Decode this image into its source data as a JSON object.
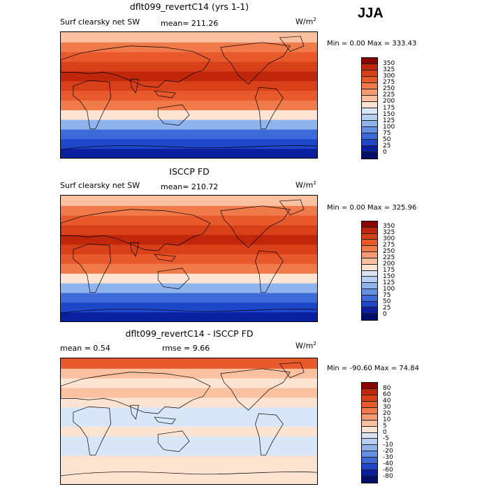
{
  "season": "JJA",
  "panels": [
    {
      "title": "dflt099_revertC14 (yrs 1-1)",
      "field": "Surf clearsky net SW",
      "stat": "mean= 211.26",
      "units": "W/m",
      "units_sup": "2",
      "minmax": "Min =    0.00 Max = 333.43",
      "cbar_labels": [
        "350",
        "325",
        "300",
        "275",
        "250",
        "225",
        "200",
        "175",
        "150",
        "125",
        "100",
        "75",
        "50",
        "25",
        "0"
      ],
      "cbar_colors": [
        "#8b0000",
        "#c0260a",
        "#d8401a",
        "#e85a2c",
        "#f07a4a",
        "#f59a72",
        "#fac0a0",
        "#fde3d2",
        "#d8e6f8",
        "#b6cff2",
        "#8fb3ec",
        "#6690e4",
        "#3d6ad8",
        "#1d46c8",
        "#0a1fa0",
        "#02106a"
      ],
      "band_colors": [
        "#0a1fa0",
        "#1d46c8",
        "#3d6ad8",
        "#8fb3ec",
        "#fde3d2",
        "#f07a4a",
        "#e85a2c",
        "#d8401a",
        "#c0260a",
        "#d8401a",
        "#e85a2c",
        "#f07a4a",
        "#fac0a0"
      ]
    },
    {
      "title": "ISCCP FD",
      "field": "Surf clearsky net SW",
      "stat": "mean= 210.72",
      "units": "W/m",
      "units_sup": "2",
      "minmax": "Min =    0.00 Max = 325.96",
      "cbar_labels": [
        "350",
        "325",
        "300",
        "275",
        "250",
        "225",
        "200",
        "175",
        "150",
        "125",
        "100",
        "75",
        "50",
        "25",
        "0"
      ],
      "cbar_colors": [
        "#8b0000",
        "#c0260a",
        "#d8401a",
        "#e85a2c",
        "#f07a4a",
        "#f59a72",
        "#fac0a0",
        "#fde3d2",
        "#d8e6f8",
        "#b6cff2",
        "#8fb3ec",
        "#6690e4",
        "#3d6ad8",
        "#1d46c8",
        "#0a1fa0",
        "#02106a"
      ],
      "band_colors": [
        "#0a1fa0",
        "#1d46c8",
        "#3d6ad8",
        "#8fb3ec",
        "#fde3d2",
        "#f07a4a",
        "#e85a2c",
        "#d8401a",
        "#c0260a",
        "#d8401a",
        "#e85a2c",
        "#f07a4a",
        "#fac0a0"
      ]
    },
    {
      "title": "dflt099_revertC14 - ISCCP FD",
      "stat_mean": "mean =    0.54",
      "stat_rmse": "rmse =    9.66",
      "units": "W/m",
      "units_sup": "2",
      "minmax": "Min = -90.60 Max =  74.84",
      "cbar_labels": [
        "80",
        "60",
        "40",
        "30",
        "20",
        "10",
        "5",
        "0",
        "-5",
        "-10",
        "-20",
        "-30",
        "-40",
        "-60",
        "-80"
      ],
      "cbar_colors": [
        "#8b0000",
        "#c0260a",
        "#d8401a",
        "#e85a2c",
        "#f07a4a",
        "#f59a72",
        "#fac0a0",
        "#fde3d2",
        "#d8e6f8",
        "#b6cff2",
        "#8fb3ec",
        "#6690e4",
        "#3d6ad8",
        "#1d46c8",
        "#0a1fa0",
        "#02106a"
      ],
      "band_colors": [
        "#fde3d2",
        "#fde3d2",
        "#fde3d2",
        "#d8e6f8",
        "#d8e6f8",
        "#fde3d2",
        "#d8e6f8",
        "#d8e6f8",
        "#fde3d2",
        "#fac0a0",
        "#fde3d2",
        "#fac0a0",
        "#e85a2c"
      ]
    }
  ]
}
